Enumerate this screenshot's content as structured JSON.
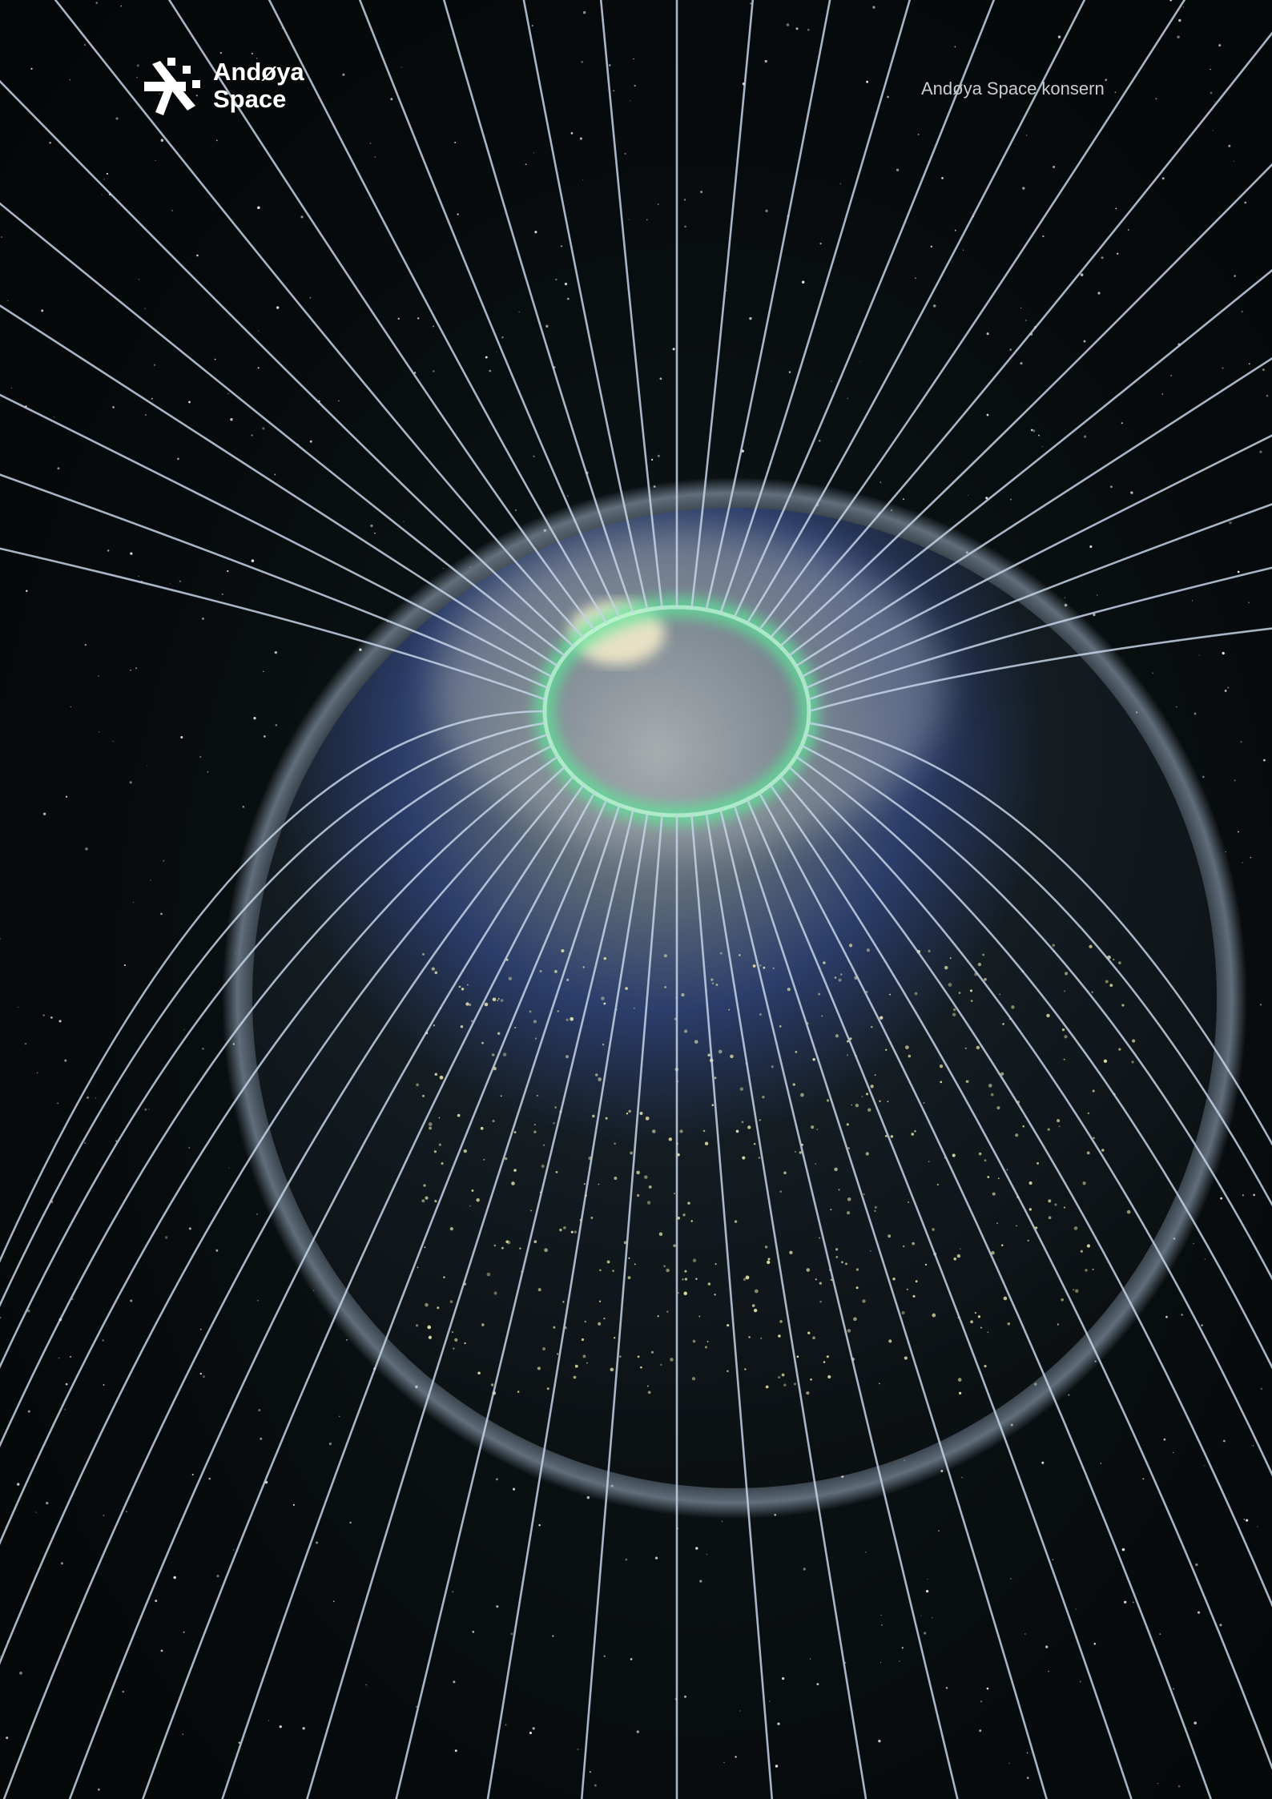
{
  "logo": {
    "line1": "Andøya",
    "line2": "Space"
  },
  "header": {
    "right_text": "Andøya Space konsern"
  }
}
